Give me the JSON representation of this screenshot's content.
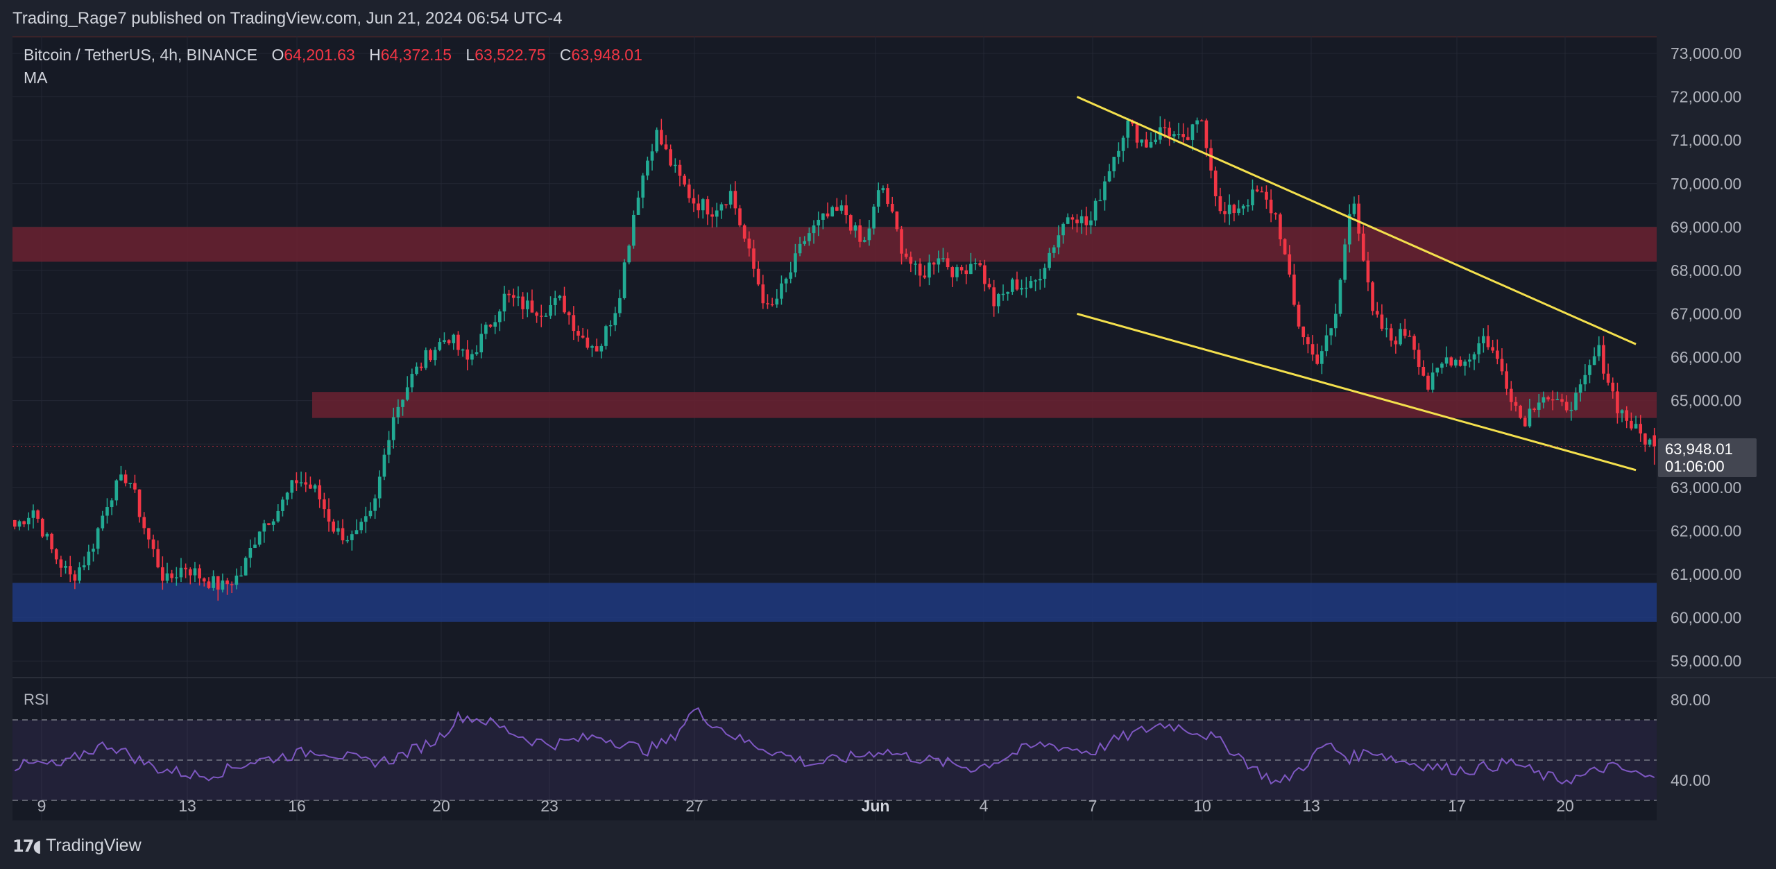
{
  "header": {
    "published_line": "Trading_Rage7 published on TradingView.com, Jun 21, 2024 06:54 UTC-4"
  },
  "legend": {
    "symbol": "Bitcoin / TetherUS, 4h, BINANCE",
    "o_key": "O",
    "o_val": "64,201.63",
    "h_key": "H",
    "h_val": "64,372.15",
    "l_key": "L",
    "l_val": "63,522.75",
    "c_key": "C",
    "c_val": "63,948.01",
    "ma_label": "MA"
  },
  "rsi_label": "RSI",
  "last_price_tag": {
    "price": "63,948.01",
    "countdown": "01:06:00"
  },
  "logo_text": "TradingView",
  "colors": {
    "up": "#22ab94",
    "down": "#f23645",
    "resistance_zone": "#6b2231",
    "support_zone": "#1f3a80",
    "trendline": "#f4e04d",
    "rsi_line": "#7e57c2",
    "grid": "#232734",
    "background": "#161a25"
  },
  "chart_data": {
    "type": "candlestick",
    "title": "Bitcoin / TetherUS, 4h, BINANCE",
    "interval": "4h",
    "price_axis": {
      "ticks": [
        59000,
        60000,
        61000,
        62000,
        63000,
        64000,
        65000,
        66000,
        67000,
        68000,
        69000,
        70000,
        71000,
        72000,
        73000
      ],
      "tick_labels": [
        "59,000.00",
        "60,000.00",
        "61,000.00",
        "62,000.00",
        "63,000.00",
        "",
        "65,000.00",
        "66,000.00",
        "67,000.00",
        "68,000.00",
        "69,000.00",
        "70,000.00",
        "71,000.00",
        "72,000.00",
        "73,000.00"
      ],
      "range": [
        58650,
        73400
      ]
    },
    "time_axis": {
      "labels": [
        "9",
        "13",
        "16",
        "20",
        "23",
        "27",
        "Jun",
        "4",
        "7",
        "10",
        "13",
        "17",
        "20"
      ]
    },
    "last": {
      "open": 64201.63,
      "high": 64372.15,
      "low": 63522.75,
      "close": 63948.01
    },
    "zones": [
      {
        "name": "upper-resistance",
        "low": 68200,
        "high": 69000
      },
      {
        "name": "lower-resistance",
        "low": 64600,
        "high": 65200
      },
      {
        "name": "support",
        "low": 59900,
        "high": 60800
      }
    ],
    "trendlines": [
      {
        "name": "upper-trendline",
        "from": {
          "bar": 230,
          "price": 72000
        },
        "to": {
          "bar": 351,
          "price": 66300
        }
      },
      {
        "name": "lower-trendline",
        "from": {
          "bar": 230,
          "price": 67000
        },
        "to": {
          "bar": 351,
          "price": 63400
        }
      }
    ],
    "candles_anchor_closes": [
      62100,
      62500,
      61500,
      60900,
      61500,
      62800,
      63300,
      61900,
      60800,
      61200,
      60900,
      60700,
      61000,
      62100,
      62500,
      63200,
      62900,
      62000,
      61800,
      62400,
      64600,
      65500,
      66100,
      66500,
      65900,
      66600,
      67400,
      67200,
      67100,
      67300,
      66500,
      66200,
      67300,
      69700,
      71200,
      70300,
      69600,
      69400,
      69800,
      68300,
      67000,
      67800,
      68800,
      69200,
      69400,
      68500,
      70000,
      68600,
      67800,
      68400,
      67900,
      68300,
      67200,
      67700,
      67600,
      68500,
      69400,
      69000,
      70300,
      71400,
      70900,
      71300,
      70900,
      71500,
      69200,
      69500,
      69800,
      69200,
      66900,
      65900,
      66700,
      69900,
      67000,
      66400,
      66600,
      65300,
      66000,
      65900,
      66500,
      65600,
      64500,
      65200,
      64800,
      65100,
      66200,
      64900,
      64300,
      63948
    ],
    "rsi": {
      "bands": [
        70,
        50,
        30
      ],
      "tick_labels": [
        "80.00",
        "40.00"
      ],
      "values": [
        47,
        48,
        47,
        54,
        58,
        52,
        46,
        44,
        42,
        45,
        49,
        51,
        53,
        55,
        52,
        49,
        50,
        55,
        60,
        72,
        70,
        65,
        60,
        58,
        60,
        62,
        58,
        55,
        60,
        75,
        67,
        60,
        56,
        52,
        48,
        50,
        52,
        55,
        52,
        50,
        48,
        46,
        50,
        55,
        58,
        56,
        54,
        60,
        64,
        68,
        66,
        62,
        55,
        45,
        38,
        47,
        58,
        51,
        55,
        50,
        48,
        46,
        45,
        47,
        49,
        43,
        40,
        42,
        47,
        44,
        40
      ]
    }
  }
}
